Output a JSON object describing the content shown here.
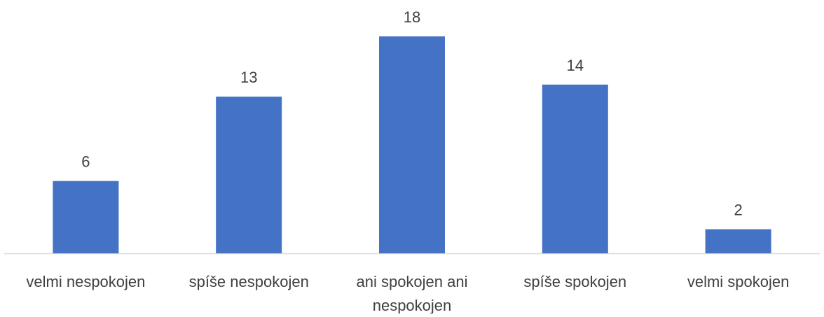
{
  "chart_data": {
    "type": "bar",
    "categories": [
      "velmi nespokojen",
      "spíše nespokojen",
      "ani spokojen ani nespokojen",
      "spíše spokojen",
      "velmi spokojen"
    ],
    "category_lines": [
      [
        "velmi nespokojen"
      ],
      [
        "spíše nespokojen"
      ],
      [
        "ani spokojen ani",
        "nespokojen"
      ],
      [
        "spíše spokojen"
      ],
      [
        "velmi spokojen"
      ]
    ],
    "values": [
      6,
      13,
      18,
      14,
      2
    ],
    "data_labels": [
      "6",
      "13",
      "18",
      "14",
      "2"
    ],
    "ylim": [
      0,
      18
    ],
    "grid": false,
    "legend": "none",
    "colors": {
      "bar": "#4472C4",
      "axis": "#D9D9D9",
      "text": "#404040"
    }
  }
}
